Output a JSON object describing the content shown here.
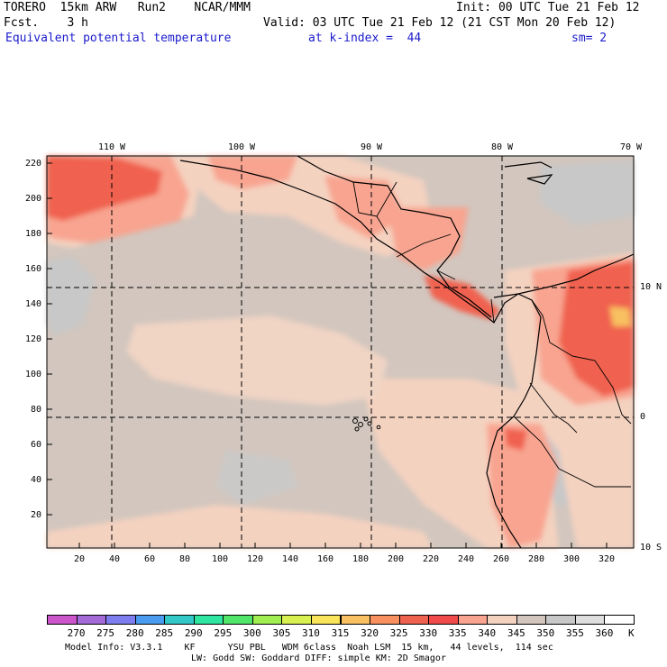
{
  "header": {
    "line1_left": "TORERO  15km ARW   Run2    NCAR/MMM",
    "line1_right": "Init: 00 UTC Tue 21 Feb 12",
    "line2_left": "Fcst.    3 h",
    "line2_right": "Valid: 03 UTC Tue 21 Feb 12 (21 CST Mon 20 Feb 12)",
    "field_name": "Equivalent potential temperature",
    "level": "at k-index =  44",
    "smoothing": "sm= 2"
  },
  "map": {
    "top_lon_labels": [
      "110 W",
      "100 W",
      "90 W",
      "80 W",
      "70 W"
    ],
    "right_lat_labels": [
      "10 N",
      "0",
      "10 S"
    ],
    "y_ticks": [
      "220",
      "200",
      "180",
      "160",
      "140",
      "120",
      "100",
      "80",
      "60",
      "40",
      "20"
    ],
    "x_ticks": [
      "20",
      "40",
      "60",
      "80",
      "100",
      "120",
      "140",
      "160",
      "180",
      "200",
      "220",
      "240",
      "260",
      "280",
      "300",
      "320"
    ]
  },
  "colorbar": {
    "labels": [
      "270",
      "275",
      "280",
      "285",
      "290",
      "295",
      "300",
      "305",
      "310",
      "315",
      "320",
      "325",
      "330",
      "335",
      "340",
      "345",
      "350",
      "355",
      "360"
    ],
    "unit": "K",
    "colors": [
      "#cc55cc",
      "#a36ad8",
      "#7e7ef0",
      "#4a9cf0",
      "#32c8c8",
      "#2ee6a0",
      "#50e66a",
      "#a0ee50",
      "#d8f050",
      "#fae55a",
      "#f8c060",
      "#f89060",
      "#f06250",
      "#f04a4a",
      "#f8a490",
      "#f4d2c0",
      "#d2c6be",
      "#c8c8c8",
      "#dedede",
      "#ffffff"
    ]
  },
  "footer": {
    "line1": "Model Info: V3.3.1    KF      YSU PBL   WDM 6class  Noah LSM  15 km,   44 levels,  114 sec",
    "line2": "LW: Godd SW: Goddard DIFF: simple KM: 2D Smagor"
  }
}
